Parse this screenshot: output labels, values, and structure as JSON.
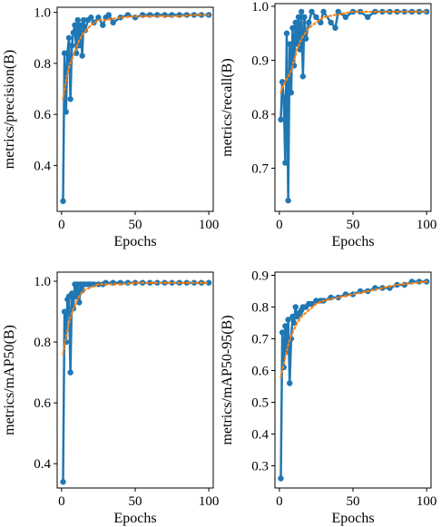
{
  "colors": {
    "series_main": "#1f77b4",
    "series_smooth": "#ff7f0e",
    "axis": "#000000",
    "background": "#ffffff"
  },
  "chart_data": [
    {
      "type": "line",
      "xlabel": "Epochs",
      "ylabel": "metrics/precision(B)",
      "xlim": [
        -3,
        103
      ],
      "ylim": [
        0.22,
        1.02
      ],
      "xticks": [
        0,
        50,
        100
      ],
      "xtick_labels": [
        "0",
        "50",
        "100"
      ],
      "yticks": [
        0.4,
        0.6,
        0.8,
        1.0
      ],
      "ytick_labels": [
        "0.4",
        "0.6",
        "0.8",
        "1.0"
      ],
      "grid": false,
      "legend": "none",
      "series": [
        {
          "style": "line-with-markers",
          "color": "#1f77b4",
          "x": [
            1,
            2,
            3,
            4,
            5,
            6,
            7,
            8,
            9,
            10,
            11,
            12,
            13,
            14,
            15,
            16,
            18,
            20,
            22,
            25,
            28,
            30,
            32,
            35,
            40,
            45,
            50,
            55,
            60,
            65,
            70,
            75,
            80,
            85,
            90,
            95,
            100
          ],
          "y": [
            0.26,
            0.84,
            0.61,
            0.84,
            0.9,
            0.66,
            0.87,
            0.92,
            0.95,
            0.84,
            0.97,
            0.87,
            0.95,
            0.83,
            0.97,
            0.93,
            0.97,
            0.98,
            0.96,
            0.98,
            0.95,
            0.98,
            0.99,
            0.96,
            0.98,
            0.99,
            0.98,
            0.99,
            0.99,
            0.99,
            0.99,
            0.99,
            0.99,
            0.99,
            0.99,
            0.99,
            0.99
          ]
        },
        {
          "style": "dotted-smooth",
          "color": "#ff7f0e",
          "x": [
            1,
            2,
            4,
            6,
            8,
            10,
            12,
            15,
            20,
            25,
            30,
            40,
            50,
            60,
            70,
            80,
            90,
            100
          ],
          "y": [
            0.66,
            0.7,
            0.76,
            0.8,
            0.83,
            0.86,
            0.89,
            0.92,
            0.95,
            0.97,
            0.97,
            0.98,
            0.985,
            0.985,
            0.985,
            0.985,
            0.99,
            0.99
          ]
        }
      ]
    },
    {
      "type": "line",
      "xlabel": "Epochs",
      "ylabel": "metrics/recall(B)",
      "xlim": [
        -3,
        103
      ],
      "ylim": [
        0.62,
        1.005
      ],
      "xticks": [
        0,
        50,
        100
      ],
      "xtick_labels": [
        "0",
        "50",
        "100"
      ],
      "yticks": [
        0.7,
        0.8,
        0.9,
        1.0
      ],
      "ytick_labels": [
        "0.7",
        "0.8",
        "0.9",
        "1.0"
      ],
      "grid": false,
      "legend": "none",
      "series": [
        {
          "style": "line-with-markers",
          "color": "#1f77b4",
          "x": [
            1,
            2,
            3,
            4,
            5,
            6,
            7,
            8,
            9,
            10,
            11,
            12,
            13,
            14,
            15,
            16,
            17,
            18,
            20,
            22,
            25,
            28,
            30,
            35,
            38,
            40,
            45,
            50,
            55,
            60,
            65,
            70,
            75,
            80,
            85,
            90,
            95,
            100
          ],
          "y": [
            0.79,
            0.86,
            0.83,
            0.71,
            0.95,
            0.64,
            0.93,
            0.84,
            0.96,
            0.89,
            0.97,
            0.93,
            0.98,
            0.92,
            0.99,
            0.87,
            0.98,
            0.94,
            0.97,
            0.99,
            0.98,
            0.97,
            0.99,
            0.97,
            0.96,
            0.99,
            0.98,
            0.99,
            0.99,
            0.98,
            0.99,
            0.99,
            0.99,
            0.99,
            0.99,
            0.99,
            0.99,
            0.99
          ]
        },
        {
          "style": "dotted-smooth",
          "color": "#ff7f0e",
          "x": [
            1,
            2,
            4,
            6,
            8,
            10,
            12,
            15,
            20,
            25,
            30,
            40,
            50,
            60,
            70,
            80,
            90,
            100
          ],
          "y": [
            0.84,
            0.85,
            0.86,
            0.87,
            0.88,
            0.9,
            0.92,
            0.94,
            0.96,
            0.97,
            0.98,
            0.985,
            0.99,
            0.99,
            0.99,
            0.99,
            0.99,
            0.99
          ]
        }
      ]
    },
    {
      "type": "line",
      "xlabel": "Epochs",
      "ylabel": "metrics/mAP50(B)",
      "xlim": [
        -3,
        103
      ],
      "ylim": [
        0.32,
        1.03
      ],
      "xticks": [
        0,
        50,
        100
      ],
      "xtick_labels": [
        "0",
        "50",
        "100"
      ],
      "yticks": [
        0.4,
        0.6,
        0.8,
        1.0
      ],
      "ytick_labels": [
        "0.4",
        "0.6",
        "0.8",
        "1.0"
      ],
      "grid": false,
      "legend": "none",
      "series": [
        {
          "style": "line-with-markers",
          "color": "#1f77b4",
          "x": [
            1,
            2,
            3,
            4,
            5,
            6,
            7,
            8,
            9,
            10,
            11,
            12,
            13,
            14,
            15,
            16,
            18,
            20,
            22,
            25,
            28,
            30,
            35,
            40,
            45,
            50,
            55,
            60,
            65,
            70,
            75,
            80,
            85,
            90,
            95,
            100
          ],
          "y": [
            0.34,
            0.9,
            0.8,
            0.94,
            0.95,
            0.7,
            0.96,
            0.91,
            0.99,
            0.95,
            0.99,
            0.93,
            0.99,
            0.97,
            0.99,
            0.99,
            0.99,
            0.99,
            0.99,
            0.99,
            0.99,
            0.995,
            0.995,
            0.995,
            0.995,
            0.995,
            0.995,
            0.995,
            0.995,
            0.995,
            0.995,
            0.995,
            0.995,
            0.995,
            0.995,
            0.995
          ]
        },
        {
          "style": "dotted-smooth",
          "color": "#ff7f0e",
          "x": [
            1,
            2,
            4,
            6,
            8,
            10,
            12,
            15,
            20,
            25,
            30,
            40,
            50,
            60,
            70,
            80,
            90,
            100
          ],
          "y": [
            0.76,
            0.79,
            0.84,
            0.88,
            0.91,
            0.93,
            0.95,
            0.97,
            0.98,
            0.99,
            0.99,
            0.99,
            0.995,
            0.995,
            0.995,
            0.995,
            0.995,
            0.995
          ]
        }
      ]
    },
    {
      "type": "line",
      "xlabel": "Epochs",
      "ylabel": "metrics/mAP50-95(B)",
      "xlim": [
        -3,
        103
      ],
      "ylim": [
        0.23,
        0.91
      ],
      "xticks": [
        0,
        50,
        100
      ],
      "xtick_labels": [
        "0",
        "50",
        "100"
      ],
      "yticks": [
        0.3,
        0.4,
        0.5,
        0.6,
        0.7,
        0.8,
        0.9
      ],
      "ytick_labels": [
        "0.3",
        "0.4",
        "0.5",
        "0.6",
        "0.7",
        "0.8",
        "0.9"
      ],
      "grid": false,
      "legend": "none",
      "series": [
        {
          "style": "line-with-markers",
          "color": "#1f77b4",
          "x": [
            1,
            2,
            3,
            4,
            5,
            6,
            7,
            8,
            9,
            10,
            11,
            12,
            13,
            14,
            15,
            16,
            18,
            20,
            22,
            25,
            28,
            30,
            35,
            40,
            45,
            50,
            55,
            60,
            65,
            70,
            75,
            80,
            85,
            90,
            95,
            100
          ],
          "y": [
            0.26,
            0.72,
            0.61,
            0.74,
            0.66,
            0.76,
            0.56,
            0.7,
            0.77,
            0.75,
            0.8,
            0.77,
            0.78,
            0.78,
            0.79,
            0.8,
            0.8,
            0.81,
            0.81,
            0.82,
            0.82,
            0.82,
            0.83,
            0.83,
            0.84,
            0.84,
            0.85,
            0.85,
            0.86,
            0.86,
            0.86,
            0.87,
            0.87,
            0.88,
            0.88,
            0.88
          ]
        },
        {
          "style": "dotted-smooth",
          "color": "#ff7f0e",
          "x": [
            1,
            2,
            4,
            6,
            8,
            10,
            12,
            15,
            20,
            25,
            30,
            40,
            50,
            60,
            70,
            80,
            90,
            100
          ],
          "y": [
            0.58,
            0.6,
            0.64,
            0.68,
            0.71,
            0.73,
            0.75,
            0.77,
            0.79,
            0.81,
            0.82,
            0.83,
            0.84,
            0.85,
            0.86,
            0.87,
            0.875,
            0.88
          ]
        }
      ]
    }
  ]
}
